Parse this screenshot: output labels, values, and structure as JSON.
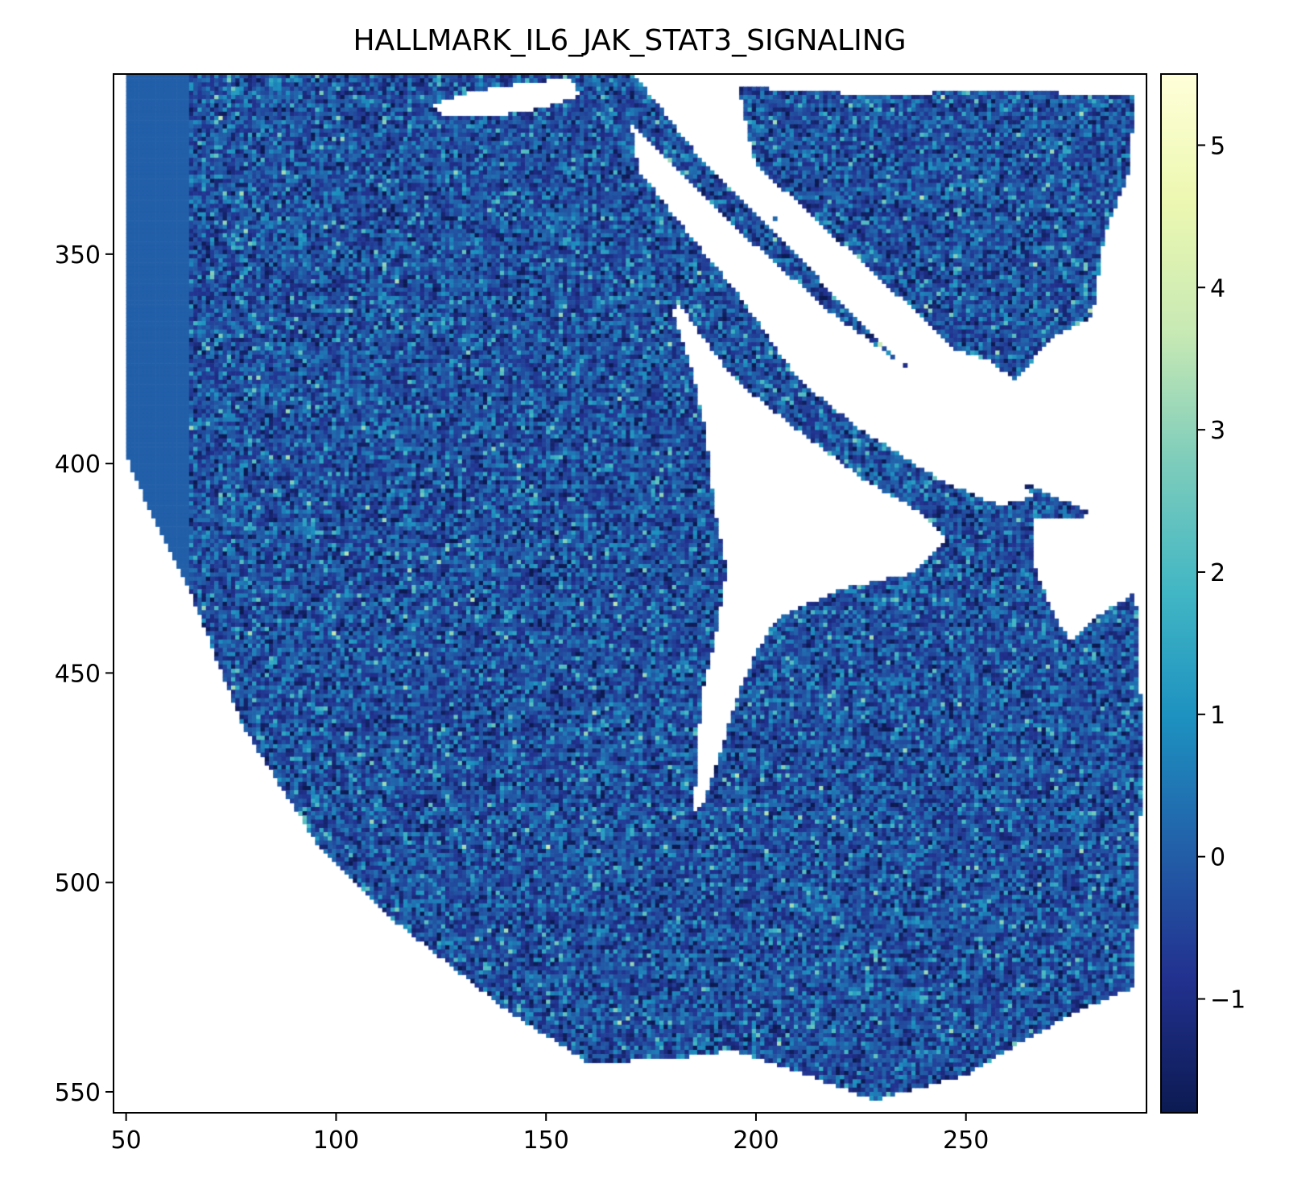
{
  "chart_data": {
    "type": "heatmap",
    "title": "HALLMARK_IL6_JAK_STAT3_SIGNALING",
    "xlabel": "",
    "ylabel": "",
    "xlim": [
      47,
      293
    ],
    "ylim": [
      555,
      307
    ],
    "x_ticks": [
      {
        "value": 50,
        "label": "50"
      },
      {
        "value": 100,
        "label": "100"
      },
      {
        "value": 150,
        "label": "150"
      },
      {
        "value": 200,
        "label": "200"
      },
      {
        "value": 250,
        "label": "250"
      }
    ],
    "y_ticks": [
      {
        "value": 350,
        "label": "350"
      },
      {
        "value": 400,
        "label": "400"
      },
      {
        "value": 450,
        "label": "450"
      },
      {
        "value": 500,
        "label": "500"
      },
      {
        "value": 550,
        "label": "550"
      }
    ],
    "colorbar": {
      "colormap": "YlGnBu",
      "range": [
        -1.8,
        5.5
      ],
      "ticks": [
        {
          "value": 5,
          "label": "5"
        },
        {
          "value": 4,
          "label": "4"
        },
        {
          "value": 3,
          "label": "3"
        },
        {
          "value": 2,
          "label": "2"
        },
        {
          "value": 1,
          "label": "1"
        },
        {
          "value": 0,
          "label": "0"
        },
        {
          "value": -1,
          "label": "−1"
        }
      ]
    },
    "tissue_regions": [
      {
        "name": "main-tissue",
        "polygon": [
          [
            50,
            307
          ],
          [
            171,
            307
          ],
          [
            185,
            325
          ],
          [
            205,
            345
          ],
          [
            225,
            367
          ],
          [
            245,
            385
          ],
          [
            265,
            405
          ],
          [
            280,
            412
          ],
          [
            285,
            425
          ],
          [
            290,
            427
          ],
          [
            291,
            440
          ],
          [
            292,
            470
          ],
          [
            290,
            525
          ],
          [
            278,
            530
          ],
          [
            265,
            537
          ],
          [
            250,
            546
          ],
          [
            228,
            552
          ],
          [
            210,
            545
          ],
          [
            195,
            540
          ],
          [
            180,
            542
          ],
          [
            160,
            543
          ],
          [
            140,
            530
          ],
          [
            115,
            510
          ],
          [
            95,
            490
          ],
          [
            78,
            463
          ],
          [
            65,
            430
          ],
          [
            55,
            410
          ],
          [
            50,
            398
          ]
        ]
      },
      {
        "name": "upper-right-tissue",
        "polygon": [
          [
            196,
            310
          ],
          [
            210,
            311
          ],
          [
            230,
            312
          ],
          [
            255,
            311
          ],
          [
            290,
            312
          ],
          [
            289,
            330
          ],
          [
            283,
            345
          ],
          [
            280,
            365
          ],
          [
            270,
            370
          ],
          [
            262,
            380
          ],
          [
            255,
            375
          ],
          [
            245,
            372
          ],
          [
            234,
            360
          ],
          [
            220,
            355
          ],
          [
            205,
            343
          ],
          [
            199,
            325
          ]
        ]
      }
    ],
    "gaps": [
      {
        "name": "white-stripe",
        "polygon": [
          [
            170,
            318
          ],
          [
            200,
            348
          ],
          [
            218,
            364
          ],
          [
            240,
            380
          ],
          [
            258,
            395
          ],
          [
            266,
            408
          ],
          [
            258,
            410
          ],
          [
            244,
            404
          ],
          [
            225,
            392
          ],
          [
            210,
            380
          ],
          [
            196,
            360
          ],
          [
            183,
            344
          ],
          [
            172,
            330
          ]
        ]
      },
      {
        "name": "central-crack",
        "polygon": [
          [
            182,
            362
          ],
          [
            186,
            368
          ],
          [
            195,
            380
          ],
          [
            210,
            392
          ],
          [
            226,
            404
          ],
          [
            240,
            412
          ],
          [
            246,
            418
          ],
          [
            238,
            426
          ],
          [
            220,
            430
          ],
          [
            205,
            437
          ],
          [
            200,
            445
          ],
          [
            195,
            457
          ],
          [
            192,
            468
          ],
          [
            188,
            480
          ],
          [
            185,
            484
          ],
          [
            186,
            470
          ],
          [
            187,
            455
          ],
          [
            190,
            443
          ],
          [
            193,
            425
          ],
          [
            190,
            410
          ],
          [
            188,
            392
          ],
          [
            184,
            375
          ],
          [
            180,
            364
          ]
        ]
      },
      {
        "name": "top-hole",
        "polygon": [
          [
            123,
            314
          ],
          [
            133,
            311
          ],
          [
            145,
            309
          ],
          [
            156,
            308
          ],
          [
            158,
            312
          ],
          [
            150,
            315
          ],
          [
            138,
            317
          ],
          [
            126,
            317
          ]
        ]
      },
      {
        "name": "right-notch",
        "polygon": [
          [
            266,
            413
          ],
          [
            291,
            412
          ],
          [
            292,
            430
          ],
          [
            282,
            436
          ],
          [
            275,
            443
          ],
          [
            270,
            434
          ],
          [
            266,
            424
          ]
        ]
      },
      {
        "name": "gap-between-sections",
        "polygon": [
          [
            193,
            322
          ],
          [
            205,
            342
          ],
          [
            212,
            350
          ],
          [
            222,
            357
          ],
          [
            236,
            364
          ],
          [
            250,
            376
          ],
          [
            262,
            386
          ],
          [
            268,
            393
          ],
          [
            262,
            386
          ]
        ]
      }
    ],
    "mean_value": -0.3
  }
}
